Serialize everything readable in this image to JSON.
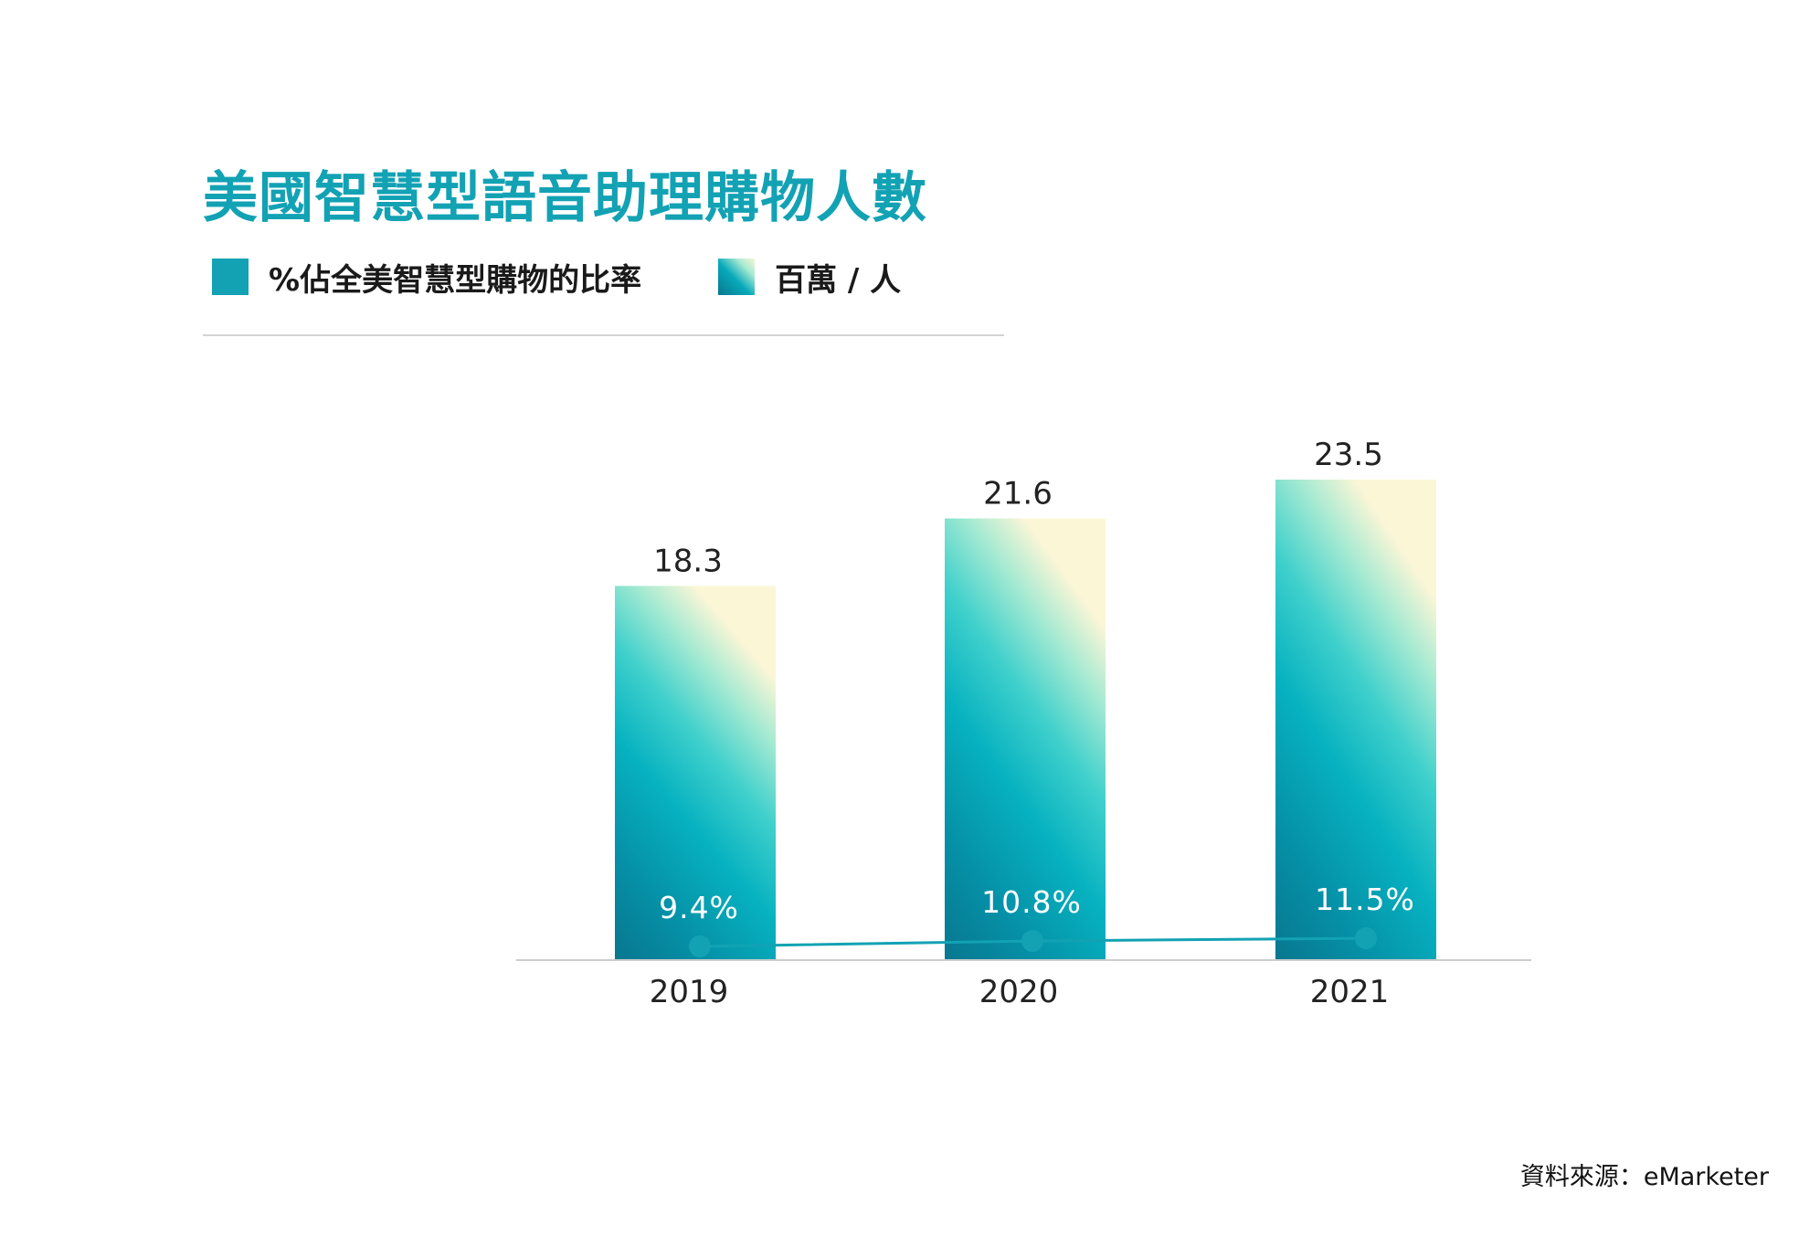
{
  "title": "美國智慧型語音助理購物人數",
  "legend": {
    "rate_label": "%佔全美智慧型購物的比率",
    "people_label": "百萬 / 人"
  },
  "source": "資料來源：eMarketer",
  "colors": {
    "accent": "#12a2b4",
    "bar_bottom": "#08778f",
    "bar_mid": "#07b2c0",
    "bar_upper": "#a6ead2",
    "bar_top_corner": "#fbf6d6",
    "axis": "#cccccc"
  },
  "chart_data": {
    "type": "bar",
    "categories": [
      "2019",
      "2020",
      "2021"
    ],
    "series": [
      {
        "name": "百萬 / 人",
        "type": "bar",
        "values": [
          18.3,
          21.6,
          23.5
        ],
        "labels": [
          "18.3",
          "21.6",
          "23.5"
        ]
      },
      {
        "name": "%佔全美智慧型購物的比率",
        "type": "line",
        "values": [
          9.4,
          10.8,
          11.5
        ],
        "labels": [
          "9.4%",
          "10.8%",
          "11.5%"
        ]
      }
    ],
    "title": "美國智慧型語音助理購物人數",
    "xlabel": "",
    "ylabel": "",
    "ylim": [
      0,
      23.5
    ],
    "grid": false,
    "legend": "top-left"
  }
}
